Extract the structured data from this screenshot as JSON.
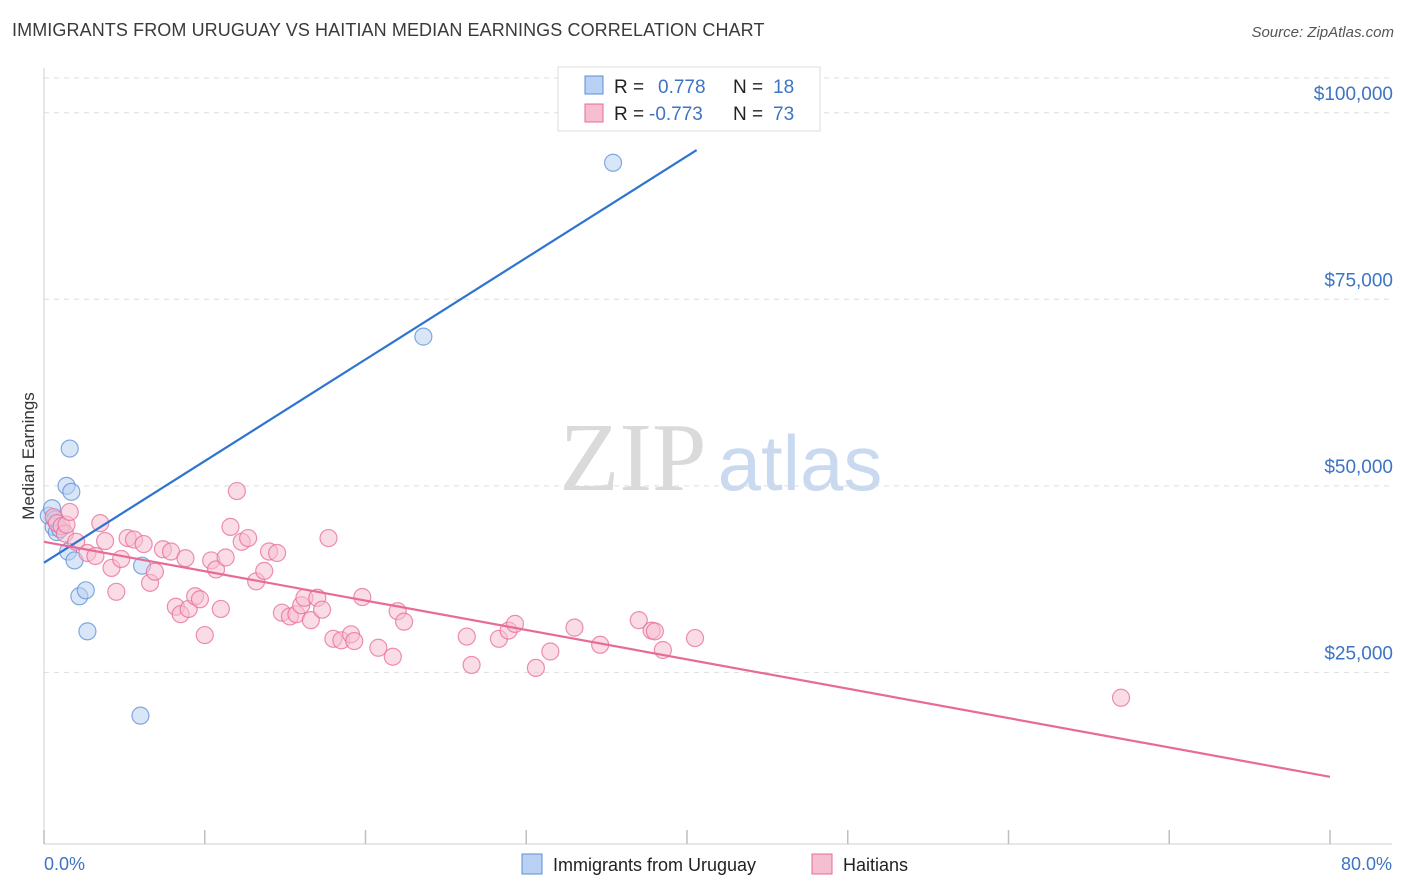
{
  "chart_data": {
    "type": "scatter",
    "title": "IMMIGRANTS FROM URUGUAY VS HAITIAN MEDIAN EARNINGS CORRELATION CHART",
    "source": "Source: ZipAtlas.com",
    "ylabel": "Median Earnings",
    "xlabel": "",
    "xlim": [
      0,
      80
    ],
    "ylim": [
      2000,
      106000
    ],
    "x_tick_labels": [
      "0.0%",
      "80.0%"
    ],
    "y_ticks": [
      25000,
      50000,
      75000,
      100000
    ],
    "y_tick_labels": [
      "$25,000",
      "$50,000",
      "$75,000",
      "$100,000"
    ],
    "watermark": "ZIPatlas",
    "colors": {
      "uruguay": "#5b8fd6",
      "uruguay_fill": "#b9d1f3",
      "haitian": "#e86b97",
      "haitian_fill": "#f6bfd1",
      "axis_text": "#3d74c4",
      "grid": "#dddddd"
    },
    "legend": [
      {
        "name": "Immigrants from Uruguay",
        "r_label": "R =",
        "r": "0.778",
        "n_label": "N =",
        "n": "18"
      },
      {
        "name": "Haitians",
        "r_label": "R =",
        "r": "-0.773",
        "n_label": "N =",
        "n": "73"
      }
    ],
    "series": [
      {
        "name": "Immigrants from Uruguay",
        "trend": [
          [
            0,
            39700
          ],
          [
            40.6,
            95000
          ]
        ],
        "points": [
          [
            0.3,
            46000
          ],
          [
            0.5,
            47000
          ],
          [
            0.6,
            44500
          ],
          [
            0.7,
            45500
          ],
          [
            0.8,
            43800
          ],
          [
            1.0,
            44200
          ],
          [
            1.4,
            50000
          ],
          [
            1.5,
            41200
          ],
          [
            1.6,
            55000
          ],
          [
            1.7,
            49200
          ],
          [
            1.9,
            40000
          ],
          [
            2.2,
            35200
          ],
          [
            2.6,
            36000
          ],
          [
            2.7,
            30500
          ],
          [
            6.0,
            19200
          ],
          [
            6.1,
            39300
          ],
          [
            23.6,
            70000
          ],
          [
            35.4,
            93300
          ]
        ]
      },
      {
        "name": "Haitians",
        "trend": [
          [
            0,
            42500
          ],
          [
            80,
            11000
          ]
        ],
        "points": [
          [
            0.6,
            45800
          ],
          [
            0.8,
            45000
          ],
          [
            1.1,
            44600
          ],
          [
            1.3,
            43600
          ],
          [
            1.4,
            44800
          ],
          [
            1.6,
            46500
          ],
          [
            2.0,
            42500
          ],
          [
            2.7,
            41000
          ],
          [
            3.2,
            40600
          ],
          [
            3.5,
            45000
          ],
          [
            3.8,
            42600
          ],
          [
            4.2,
            39000
          ],
          [
            4.5,
            35800
          ],
          [
            4.8,
            40200
          ],
          [
            5.2,
            43000
          ],
          [
            5.6,
            42800
          ],
          [
            6.2,
            42200
          ],
          [
            6.6,
            37000
          ],
          [
            6.9,
            38500
          ],
          [
            7.4,
            41500
          ],
          [
            7.9,
            41200
          ],
          [
            8.2,
            33800
          ],
          [
            8.5,
            32800
          ],
          [
            8.8,
            40300
          ],
          [
            9.0,
            33500
          ],
          [
            9.4,
            35200
          ],
          [
            9.7,
            34800
          ],
          [
            10.0,
            30000
          ],
          [
            10.4,
            40000
          ],
          [
            10.7,
            38800
          ],
          [
            11.0,
            33500
          ],
          [
            11.3,
            40400
          ],
          [
            11.6,
            44500
          ],
          [
            12.0,
            49300
          ],
          [
            12.3,
            42500
          ],
          [
            12.7,
            43000
          ],
          [
            13.2,
            37200
          ],
          [
            13.7,
            38600
          ],
          [
            14.0,
            41200
          ],
          [
            14.5,
            41000
          ],
          [
            14.8,
            33000
          ],
          [
            15.3,
            32500
          ],
          [
            15.7,
            32800
          ],
          [
            16.0,
            34000
          ],
          [
            16.2,
            35000
          ],
          [
            16.6,
            32000
          ],
          [
            17.0,
            35000
          ],
          [
            17.3,
            33400
          ],
          [
            17.7,
            43000
          ],
          [
            18.0,
            29500
          ],
          [
            18.5,
            29300
          ],
          [
            19.1,
            30100
          ],
          [
            19.3,
            29200
          ],
          [
            19.8,
            35100
          ],
          [
            20.8,
            28300
          ],
          [
            21.7,
            27100
          ],
          [
            22.0,
            33200
          ],
          [
            22.4,
            31800
          ],
          [
            26.3,
            29800
          ],
          [
            26.6,
            26000
          ],
          [
            28.3,
            29500
          ],
          [
            28.9,
            30600
          ],
          [
            29.3,
            31500
          ],
          [
            30.6,
            25600
          ],
          [
            33.0,
            31000
          ],
          [
            34.6,
            28700
          ],
          [
            37.0,
            32000
          ],
          [
            37.8,
            30600
          ],
          [
            38.5,
            28000
          ],
          [
            40.5,
            29600
          ],
          [
            67.0,
            21600
          ],
          [
            38.0,
            30500
          ],
          [
            31.5,
            27800
          ]
        ]
      }
    ]
  }
}
